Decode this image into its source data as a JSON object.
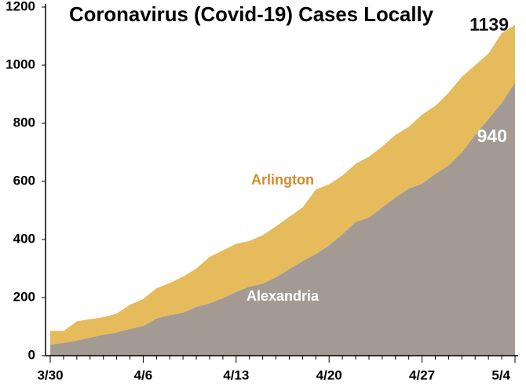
{
  "chart_data": {
    "type": "stacked_area",
    "title": "Coronavirus (Covid-19) Cases Locally",
    "categories": [
      "3/30",
      null,
      null,
      null,
      null,
      null,
      null,
      "4/6",
      null,
      null,
      null,
      null,
      null,
      null,
      "4/13",
      null,
      null,
      null,
      null,
      null,
      null,
      "4/20",
      null,
      null,
      null,
      null,
      null,
      null,
      "4/27",
      null,
      null,
      null,
      null,
      null,
      null,
      "5/4"
    ],
    "series": [
      {
        "name": "Alexandria",
        "color": "#a39a93",
        "label_color": "#ffffff",
        "values": [
          38,
          44,
          52,
          62,
          72,
          80,
          92,
          102,
          128,
          140,
          148,
          168,
          180,
          198,
          220,
          238,
          248,
          270,
          298,
          325,
          350,
          380,
          418,
          460,
          475,
          510,
          545,
          575,
          592,
          626,
          655,
          700,
          760,
          815,
          870,
          940
        ]
      },
      {
        "name": "Arlington",
        "color": "#e5bb5c",
        "label_color": "#d4892a",
        "values": [
          47,
          41,
          66,
          64,
          60,
          65,
          83,
          93,
          104,
          110,
          124,
          132,
          160,
          164,
          165,
          157,
          167,
          175,
          180,
          185,
          222,
          210,
          202,
          200,
          210,
          210,
          215,
          213,
          238,
          234,
          250,
          260,
          240,
          225,
          240,
          199
        ]
      }
    ],
    "annotations": [
      "1139",
      "940"
    ],
    "ylim": [
      0,
      1200
    ],
    "yticks": [
      0,
      200,
      400,
      600,
      800,
      1000,
      1200
    ],
    "grid": false
  }
}
